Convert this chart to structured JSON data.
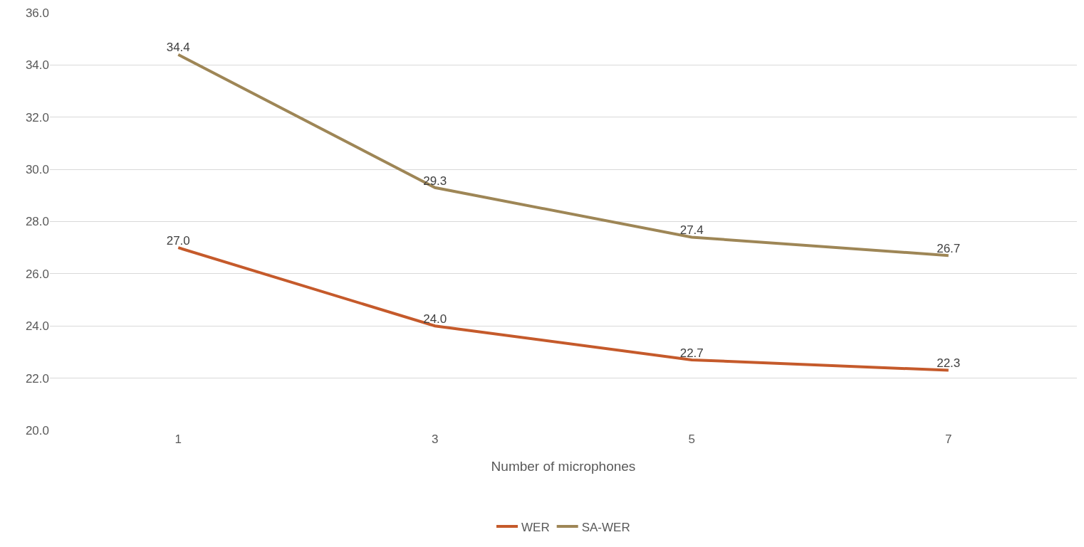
{
  "chart_data": {
    "type": "line",
    "xlabel": "Number of microphones",
    "categories": [
      "1",
      "3",
      "5",
      "7"
    ],
    "series": [
      {
        "name": "WER",
        "color": "#c55a2b",
        "values": [
          27.0,
          24.0,
          22.7,
          22.3
        ],
        "value_labels": [
          "27.0",
          "24.0",
          "22.7",
          "22.3"
        ]
      },
      {
        "name": "SA-WER",
        "color": "#9e8656",
        "values": [
          34.4,
          29.3,
          27.4,
          26.7
        ],
        "value_labels": [
          "34.4",
          "29.3",
          "27.4",
          "26.7"
        ]
      }
    ],
    "ylim": [
      20,
      36
    ],
    "yticks": [
      {
        "value": 20,
        "label": "20.0"
      },
      {
        "value": 22,
        "label": "22.0"
      },
      {
        "value": 24,
        "label": "24.0"
      },
      {
        "value": 26,
        "label": "26.0"
      },
      {
        "value": 28,
        "label": "28.0"
      },
      {
        "value": 30,
        "label": "30.0"
      },
      {
        "value": 32,
        "label": "32.0"
      },
      {
        "value": 34,
        "label": "34.0"
      },
      {
        "value": 36,
        "label": "36.0"
      }
    ],
    "grid": "y",
    "legend": "bottom",
    "marker": "none",
    "line_style": "solid"
  }
}
